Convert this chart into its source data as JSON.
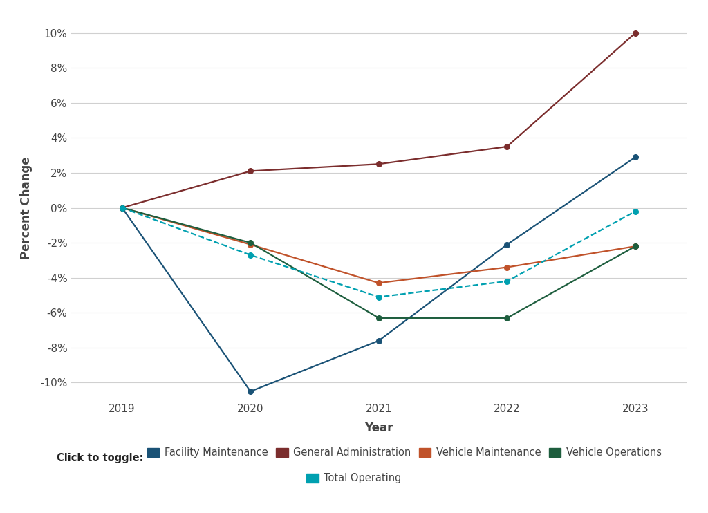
{
  "xlabel": "Year",
  "ylabel": "Percent Change",
  "years": [
    2019,
    2020,
    2021,
    2022,
    2023
  ],
  "series": [
    {
      "name": "Facility Maintenance",
      "color": "#1a5276",
      "linestyle": "solid",
      "marker": "o",
      "values": [
        0,
        -10.5,
        -7.6,
        -2.1,
        2.9
      ]
    },
    {
      "name": "General Administration",
      "color": "#7b2d2d",
      "linestyle": "solid",
      "marker": "o",
      "values": [
        0,
        2.1,
        2.5,
        3.5,
        10.0
      ]
    },
    {
      "name": "Vehicle Maintenance",
      "color": "#c0522a",
      "linestyle": "solid",
      "marker": "o",
      "values": [
        0,
        -2.1,
        -4.3,
        -3.4,
        -2.2
      ]
    },
    {
      "name": "Vehicle Operations",
      "color": "#1e5e3e",
      "linestyle": "solid",
      "marker": "o",
      "values": [
        0,
        -2.0,
        -6.3,
        -6.3,
        -2.2
      ]
    },
    {
      "name": "Total Operating",
      "color": "#00a0b0",
      "linestyle": "dashed",
      "marker": "o",
      "values": [
        0,
        -2.7,
        -5.1,
        -4.2,
        -0.2
      ]
    }
  ],
  "ylim": [
    -11,
    11
  ],
  "yticks": [
    -10,
    -8,
    -6,
    -4,
    -2,
    0,
    2,
    4,
    6,
    8,
    10
  ],
  "background_color": "#ffffff",
  "grid_color": "#d0d0d0",
  "legend_prefix": "Click to toggle:",
  "axis_label_fontsize": 12,
  "tick_fontsize": 11,
  "legend_fontsize": 10.5,
  "tick_color": "#444444",
  "label_color": "#444444"
}
